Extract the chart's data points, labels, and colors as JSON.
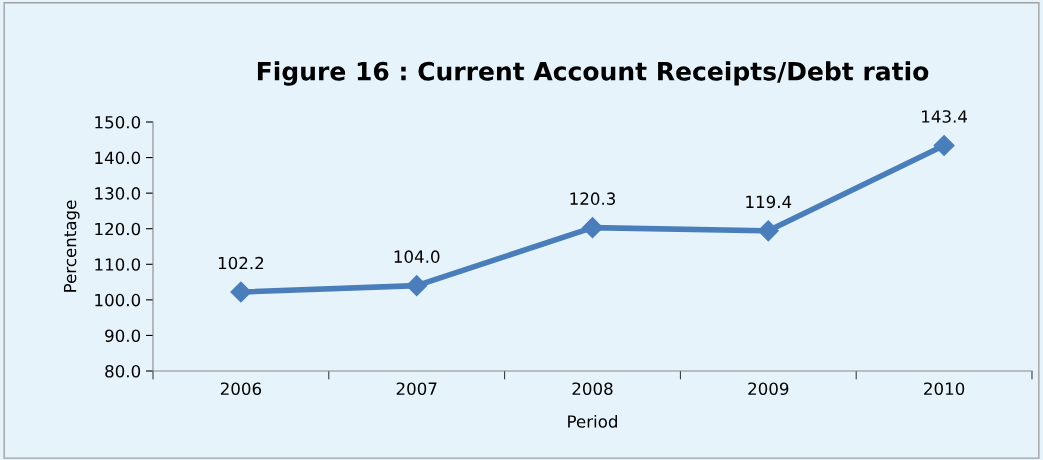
{
  "chart_data": {
    "type": "line",
    "title": "Figure 16 : Current Account Receipts/Debt ratio",
    "xlabel": "Period",
    "ylabel": "Percentage",
    "categories": [
      "2006",
      "2007",
      "2008",
      "2009",
      "2010"
    ],
    "series": [
      {
        "color": "#4a7ebb",
        "values": [
          102.2,
          104.0,
          120.3,
          119.4,
          143.4
        ],
        "value_labels": [
          "102.2",
          "104.0",
          "120.3",
          "119.4",
          "143.4"
        ]
      }
    ],
    "ylim": [
      80,
      150
    ],
    "yticks": [
      {
        "value": 80,
        "label": "80.0"
      },
      {
        "value": 90,
        "label": "90.0"
      },
      {
        "value": 100,
        "label": "100.0"
      },
      {
        "value": 110,
        "label": "110.0"
      },
      {
        "value": 120,
        "label": "120.0"
      },
      {
        "value": 130,
        "label": "130.0"
      },
      {
        "value": 140,
        "label": "140.0"
      },
      {
        "value": 150,
        "label": "150.0"
      }
    ],
    "grid": false,
    "legend": false,
    "marker": "diamond",
    "line_style": "solid"
  }
}
